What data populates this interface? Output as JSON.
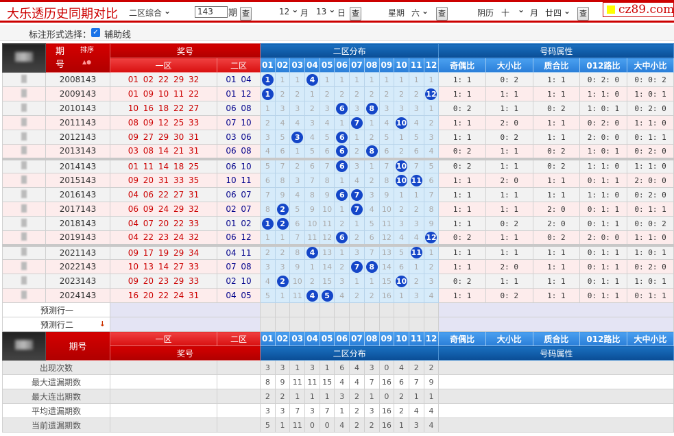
{
  "topbar": {
    "title": "大乐透历史同期对比",
    "mode": "二区综合",
    "period_value": "143",
    "period_label": "期",
    "query": "查",
    "month": "12",
    "month_label": "月",
    "day": "13",
    "day_label": "日",
    "weekday_label": "星期",
    "weekday": "六",
    "lunar_label": "阴历",
    "lunar_month": "十",
    "lunar_month_label": "月",
    "lunar_day": "廿四",
    "logo": "cz89.com"
  },
  "options": {
    "label": "标注形式选择：",
    "checkbox_label": "辅助线",
    "checked": true
  },
  "header": {
    "period": "期\n号",
    "sort": "排序",
    "prize": "奖号",
    "zone1": "一区",
    "zone2": "二区",
    "distribution": "二区分布",
    "attributes": "号码属性",
    "numbers": [
      "01",
      "02",
      "03",
      "04",
      "05",
      "06",
      "07",
      "08",
      "09",
      "10",
      "11",
      "12"
    ],
    "attr_cols": [
      "奇偶比",
      "大小比",
      "质合比",
      "012路比",
      "大中小比"
    ]
  },
  "rows": [
    {
      "period": "2008143",
      "zone1": "01 02 22 29 32",
      "zone2": "01 04",
      "dist": [
        1,
        1,
        1,
        4,
        1,
        1,
        1,
        1,
        1,
        1,
        1,
        1
      ],
      "attrs": [
        "1: 1",
        "0: 2",
        "1: 1",
        "0: 2: 0",
        "0: 0: 2"
      ]
    },
    {
      "period": "2009143",
      "zone1": "01 09 10 11 22",
      "zone2": "01 12",
      "dist": [
        1,
        2,
        2,
        1,
        2,
        2,
        2,
        2,
        2,
        2,
        2,
        12
      ],
      "attrs": [
        "1: 1",
        "1: 1",
        "1: 1",
        "1: 1: 0",
        "1: 0: 1"
      ]
    },
    {
      "period": "2010143",
      "zone1": "10 16 18 22 27",
      "zone2": "06 08",
      "dist": [
        1,
        3,
        3,
        2,
        3,
        6,
        3,
        8,
        3,
        3,
        3,
        1
      ],
      "attrs": [
        "0: 2",
        "1: 1",
        "0: 2",
        "1: 0: 1",
        "0: 2: 0"
      ]
    },
    {
      "period": "2011143",
      "zone1": "08 09 12 25 33",
      "zone2": "07 10",
      "dist": [
        2,
        4,
        4,
        3,
        4,
        1,
        7,
        1,
        4,
        10,
        4,
        2
      ],
      "attrs": [
        "1: 1",
        "2: 0",
        "1: 1",
        "0: 2: 0",
        "1: 1: 0"
      ]
    },
    {
      "period": "2012143",
      "zone1": "09 27 29 30 31",
      "zone2": "03 06",
      "dist": [
        3,
        5,
        3,
        4,
        5,
        6,
        1,
        2,
        5,
        1,
        5,
        3
      ],
      "attrs": [
        "1: 1",
        "0: 2",
        "1: 1",
        "2: 0: 0",
        "0: 1: 1"
      ]
    },
    {
      "period": "2013143",
      "zone1": "03 08 14 21 31",
      "zone2": "06 08",
      "dist": [
        4,
        6,
        1,
        5,
        6,
        6,
        2,
        8,
        6,
        2,
        6,
        4
      ],
      "attrs": [
        "0: 2",
        "1: 1",
        "0: 2",
        "1: 0: 1",
        "0: 2: 0"
      ]
    },
    {
      "period": "2014143",
      "zone1": "01 11 14 18 25",
      "zone2": "06 10",
      "dist": [
        5,
        7,
        2,
        6,
        7,
        6,
        3,
        1,
        7,
        10,
        7,
        5
      ],
      "attrs": [
        "0: 2",
        "1: 1",
        "0: 2",
        "1: 1: 0",
        "1: 1: 0"
      ]
    },
    {
      "period": "2015143",
      "zone1": "09 20 31 33 35",
      "zone2": "10 11",
      "dist": [
        6,
        8,
        3,
        7,
        8,
        1,
        4,
        2,
        8,
        10,
        11,
        6
      ],
      "attrs": [
        "1: 1",
        "2: 0",
        "1: 1",
        "0: 1: 1",
        "2: 0: 0"
      ]
    },
    {
      "period": "2016143",
      "zone1": "04 06 22 27 31",
      "zone2": "06 07",
      "dist": [
        7,
        9,
        4,
        8,
        9,
        6,
        7,
        3,
        9,
        1,
        1,
        7
      ],
      "attrs": [
        "1: 1",
        "1: 1",
        "1: 1",
        "1: 1: 0",
        "0: 2: 0"
      ]
    },
    {
      "period": "2017143",
      "zone1": "06 09 24 29 32",
      "zone2": "02 07",
      "dist": [
        8,
        2,
        5,
        9,
        10,
        1,
        7,
        4,
        10,
        2,
        2,
        8
      ],
      "attrs": [
        "1: 1",
        "1: 1",
        "2: 0",
        "0: 1: 1",
        "0: 1: 1"
      ]
    },
    {
      "period": "2018143",
      "zone1": "04 07 20 22 33",
      "zone2": "01 02",
      "dist": [
        1,
        2,
        6,
        10,
        11,
        2,
        1,
        5,
        11,
        3,
        3,
        9
      ],
      "attrs": [
        "1: 1",
        "0: 2",
        "2: 0",
        "0: 1: 1",
        "0: 0: 2"
      ]
    },
    {
      "period": "2019143",
      "zone1": "04 22 23 24 32",
      "zone2": "06 12",
      "dist": [
        1,
        1,
        7,
        11,
        12,
        6,
        2,
        6,
        12,
        4,
        4,
        12
      ],
      "attrs": [
        "0: 2",
        "1: 1",
        "0: 2",
        "2: 0: 0",
        "1: 1: 0"
      ]
    },
    {
      "period": "2021143",
      "zone1": "09 17 19 29 34",
      "zone2": "04 11",
      "dist": [
        2,
        2,
        8,
        4,
        13,
        1,
        3,
        7,
        13,
        5,
        11,
        1
      ],
      "attrs": [
        "1: 1",
        "1: 1",
        "1: 1",
        "0: 1: 1",
        "1: 0: 1"
      ]
    },
    {
      "period": "2022143",
      "zone1": "10 13 14 27 33",
      "zone2": "07 08",
      "dist": [
        3,
        3,
        9,
        1,
        14,
        2,
        7,
        8,
        14,
        6,
        1,
        2
      ],
      "attrs": [
        "1: 1",
        "2: 0",
        "1: 1",
        "0: 1: 1",
        "0: 2: 0"
      ]
    },
    {
      "period": "2023143",
      "zone1": "09 20 23 29 33",
      "zone2": "02 10",
      "dist": [
        4,
        2,
        10,
        2,
        15,
        3,
        1,
        1,
        15,
        10,
        2,
        3
      ],
      "attrs": [
        "0: 2",
        "1: 1",
        "1: 1",
        "0: 1: 1",
        "1: 0: 1"
      ]
    },
    {
      "period": "2024143",
      "zone1": "16 20 22 24 31",
      "zone2": "04 05",
      "dist": [
        5,
        1,
        11,
        4,
        5,
        4,
        2,
        2,
        16,
        1,
        3,
        4
      ],
      "attrs": [
        "1: 1",
        "0: 2",
        "1: 1",
        "0: 1: 1",
        "0: 1: 1"
      ]
    }
  ],
  "predictions": [
    "预测行一",
    "预测行二"
  ],
  "footer_header": {
    "period": "期号",
    "zone1": "一区",
    "zone2": "二区",
    "prize": "奖号",
    "distribution": "二区分布",
    "attributes": "号码属性"
  },
  "stats": [
    {
      "label": "出现次数",
      "values": [
        3,
        3,
        1,
        3,
        1,
        6,
        4,
        3,
        0,
        4,
        2,
        2
      ]
    },
    {
      "label": "最大遗漏期数",
      "values": [
        8,
        9,
        11,
        11,
        15,
        4,
        4,
        7,
        16,
        6,
        7,
        9
      ]
    },
    {
      "label": "最大连出期数",
      "values": [
        2,
        2,
        1,
        1,
        1,
        3,
        2,
        1,
        0,
        2,
        1,
        1
      ]
    },
    {
      "label": "平均遗漏期数",
      "values": [
        3,
        3,
        7,
        3,
        7,
        1,
        2,
        3,
        16,
        2,
        4,
        4
      ]
    },
    {
      "label": "当前遗漏期数",
      "values": [
        5,
        1,
        11,
        0,
        0,
        4,
        2,
        2,
        16,
        1,
        3,
        4
      ]
    }
  ],
  "colors": {
    "brand_red": "#cc0000",
    "ball_blue": "#1446c8",
    "header_blue": "#0a4d96"
  }
}
